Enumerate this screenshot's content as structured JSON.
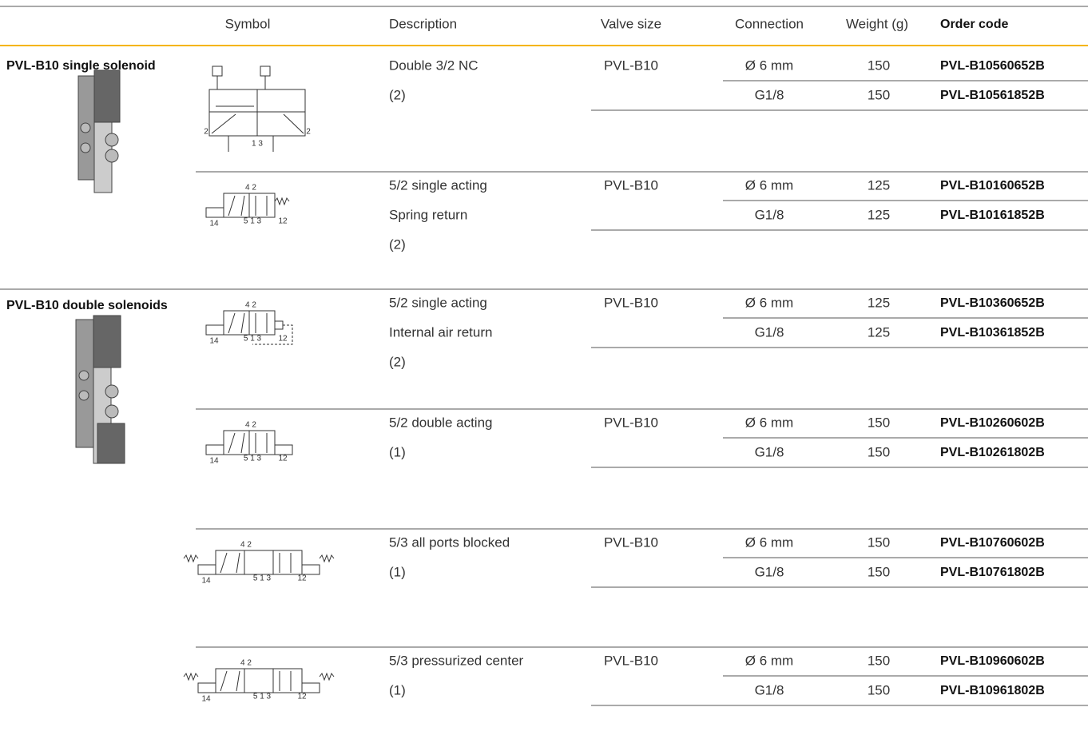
{
  "header": {
    "columns": [
      "Symbol",
      "Description",
      "Valve size",
      "Connection",
      "Weight (g)",
      "Order code"
    ]
  },
  "groups": [
    {
      "title": "PVL-B10 single solenoid",
      "valves": [
        {
          "symbol_labels": [
            "2",
            "1 3",
            "2"
          ],
          "description": [
            "Double 3/2 NC",
            "(2)"
          ],
          "valve_size": "PVL-B10",
          "variants": [
            {
              "connection": "Ø 6 mm",
              "weight": 150,
              "order_code": "PVL-B10560652B"
            },
            {
              "connection": "G1/8",
              "weight": 150,
              "order_code": "PVL-B10561852B"
            }
          ]
        },
        {
          "symbol_labels": [
            "4 2",
            "14",
            "5 1 3",
            "12"
          ],
          "description": [
            "5/2 single acting",
            "Spring return",
            "(2)"
          ],
          "valve_size": "PVL-B10",
          "variants": [
            {
              "connection": "Ø 6 mm",
              "weight": 125,
              "order_code": "PVL-B10160652B"
            },
            {
              "connection": "G1/8",
              "weight": 125,
              "order_code": "PVL-B10161852B"
            }
          ]
        }
      ]
    },
    {
      "title": "PVL-B10 double solenoids",
      "valves": [
        {
          "symbol_labels": [
            "4 2",
            "14",
            "5 1 3",
            "12"
          ],
          "description": [
            "5/2 single acting",
            "Internal air return",
            "(2)"
          ],
          "valve_size": "PVL-B10",
          "variants": [
            {
              "connection": "Ø 6 mm",
              "weight": 125,
              "order_code": "PVL-B10360652B"
            },
            {
              "connection": "G1/8",
              "weight": 125,
              "order_code": "PVL-B10361852B"
            }
          ]
        },
        {
          "symbol_labels": [
            "4 2",
            "14",
            "5 1 3",
            "12"
          ],
          "description": [
            "5/2 double acting",
            "(1)"
          ],
          "valve_size": "PVL-B10",
          "variants": [
            {
              "connection": "Ø 6 mm",
              "weight": 150,
              "order_code": "PVL-B10260602B"
            },
            {
              "connection": "G1/8",
              "weight": 150,
              "order_code": "PVL-B10261802B"
            }
          ]
        },
        {
          "symbol_labels": [
            "4 2",
            "14",
            "5 1 3",
            "12"
          ],
          "description": [
            "5/3 all ports blocked",
            "(1)"
          ],
          "valve_size": "PVL-B10",
          "variants": [
            {
              "connection": "Ø 6 mm",
              "weight": 150,
              "order_code": "PVL-B10760602B"
            },
            {
              "connection": "G1/8",
              "weight": 150,
              "order_code": "PVL-B10761802B"
            }
          ]
        },
        {
          "symbol_labels": [
            "4 2",
            "14",
            "5 1 3",
            "12"
          ],
          "description": [
            "5/3 pressurized center",
            "(1)"
          ],
          "valve_size": "PVL-B10",
          "variants": [
            {
              "connection": "Ø 6 mm",
              "weight": 150,
              "order_code": "PVL-B10960602B"
            },
            {
              "connection": "G1/8",
              "weight": 150,
              "order_code": "PVL-B10961802B"
            }
          ]
        }
      ]
    }
  ]
}
